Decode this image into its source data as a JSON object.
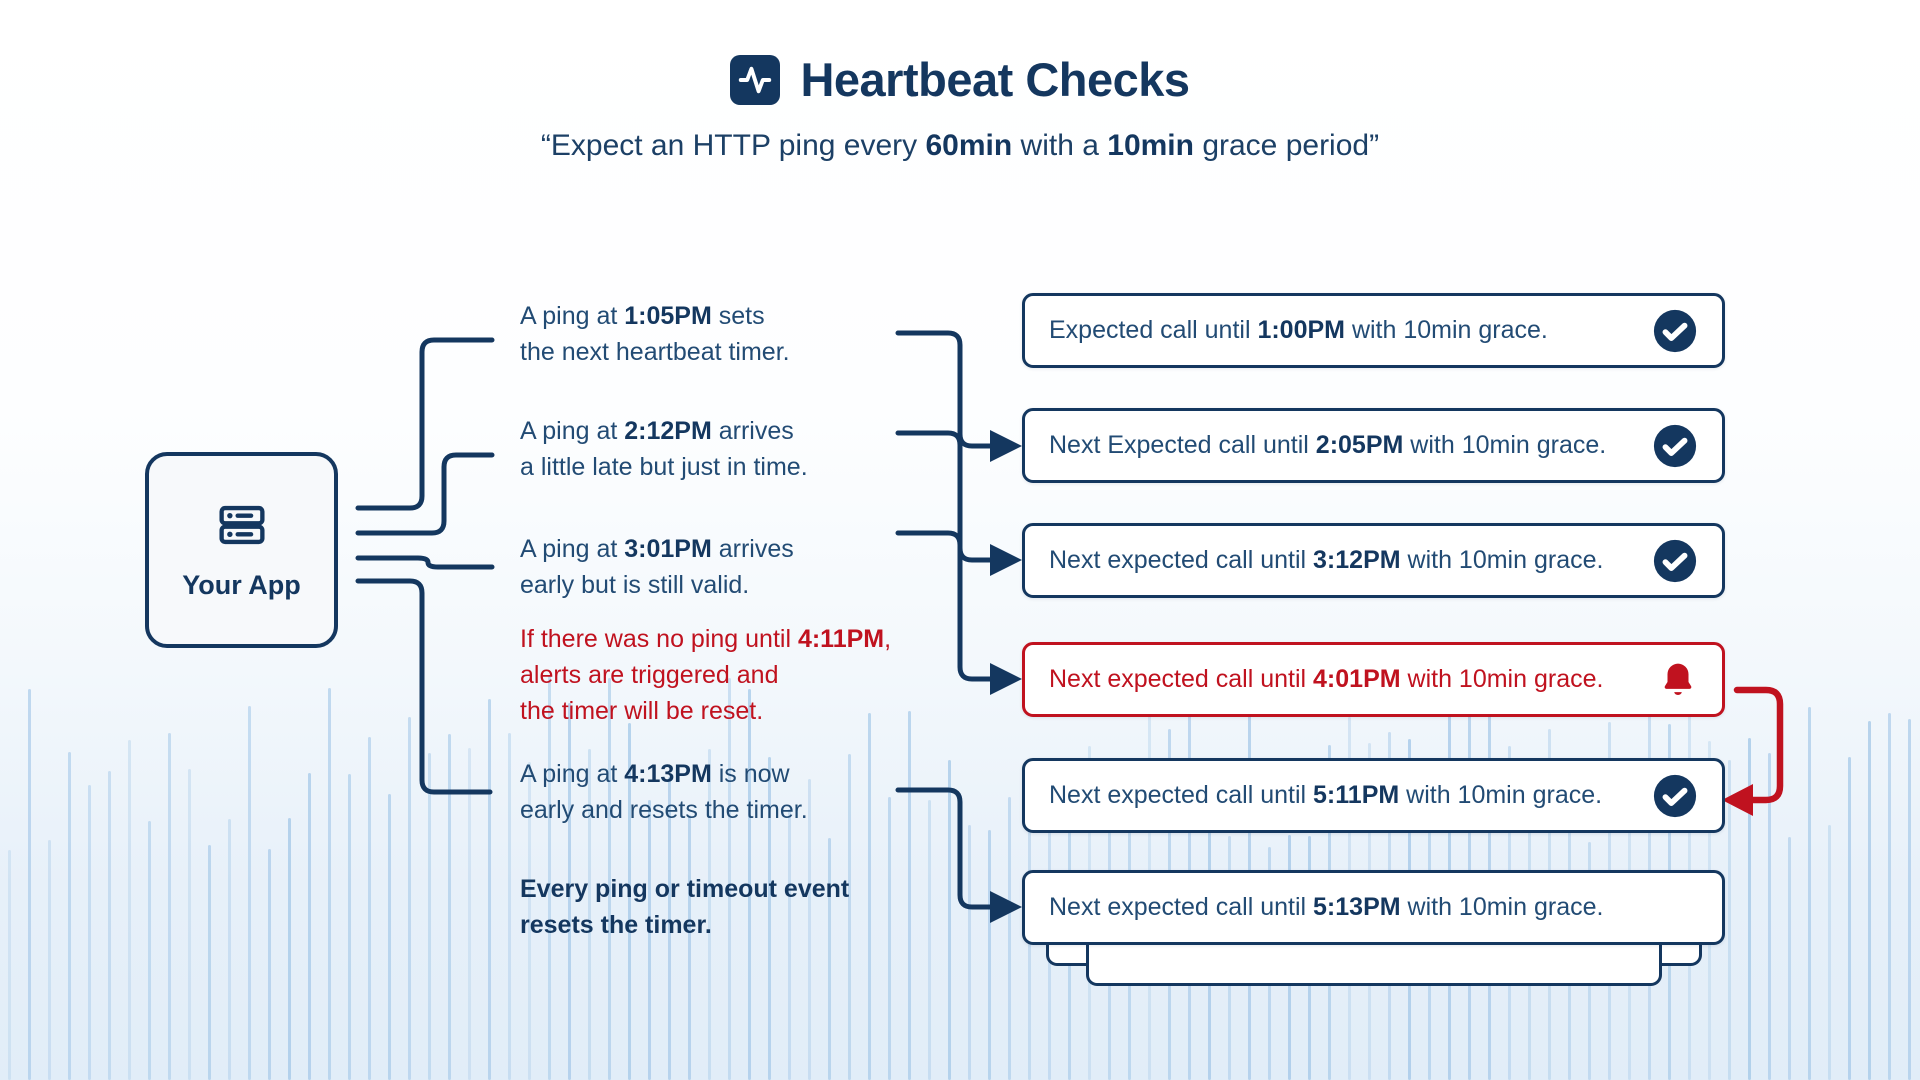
{
  "header": {
    "icon": "heartbeat-activity-icon",
    "title": "Heartbeat Checks",
    "subtitle": [
      {
        "t": "“Expect an HTTP ping every ",
        "b": false
      },
      {
        "t": "60min",
        "b": true
      },
      {
        "t": " with a ",
        "b": false
      },
      {
        "t": "10min",
        "b": true
      },
      {
        "t": " grace period”",
        "b": false
      }
    ]
  },
  "app_node": {
    "label": "Your App",
    "icon": "server-icon"
  },
  "annotations": [
    {
      "name": "note-ping-105",
      "tone": "navy",
      "lines": [
        [
          {
            "t": "A ping at ",
            "b": false
          },
          {
            "t": "1:05PM",
            "b": true
          },
          {
            "t": " sets",
            "b": false
          }
        ],
        [
          {
            "t": "the next heartbeat timer.",
            "b": false
          }
        ]
      ]
    },
    {
      "name": "note-ping-212",
      "tone": "navy",
      "lines": [
        [
          {
            "t": "A ping at ",
            "b": false
          },
          {
            "t": "2:12PM",
            "b": true
          },
          {
            "t": " arrives",
            "b": false
          }
        ],
        [
          {
            "t": "a little late but just in time.",
            "b": false
          }
        ]
      ]
    },
    {
      "name": "note-ping-301",
      "tone": "navy",
      "lines": [
        [
          {
            "t": "A ping at ",
            "b": false
          },
          {
            "t": "3:01PM",
            "b": true
          },
          {
            "t": " arrives",
            "b": false
          }
        ],
        [
          {
            "t": "early but is still valid.",
            "b": false
          }
        ]
      ]
    },
    {
      "name": "note-timeout-411",
      "tone": "red",
      "lines": [
        [
          {
            "t": "If there was no ping until ",
            "b": false
          },
          {
            "t": "4:11PM",
            "b": true
          },
          {
            "t": ",",
            "b": false
          }
        ],
        [
          {
            "t": "alerts are triggered and",
            "b": false
          }
        ],
        [
          {
            "t": "the timer will be reset.",
            "b": false
          }
        ]
      ]
    },
    {
      "name": "note-ping-413",
      "tone": "navy",
      "lines": [
        [
          {
            "t": "A ping at ",
            "b": false
          },
          {
            "t": "4:13PM",
            "b": true
          },
          {
            "t": " is now",
            "b": false
          }
        ],
        [
          {
            "t": "early and resets the timer.",
            "b": false
          }
        ]
      ]
    },
    {
      "name": "note-reset-rule",
      "tone": "allbold",
      "lines": [
        [
          {
            "t": "Every ping or timeout event",
            "b": true
          }
        ],
        [
          {
            "t": "resets the timer.",
            "b": true
          }
        ]
      ]
    }
  ],
  "cards": [
    {
      "name": "card-expected-100pm",
      "tone": "navy",
      "icon": "check-circle-icon",
      "segments": [
        {
          "t": "Expected call until ",
          "b": false
        },
        {
          "t": "1:00PM",
          "b": true
        },
        {
          "t": " with 10min grace.",
          "b": false
        }
      ]
    },
    {
      "name": "card-expected-205pm",
      "tone": "navy",
      "icon": "check-circle-icon",
      "segments": [
        {
          "t": "Next Expected call until ",
          "b": false
        },
        {
          "t": "2:05PM",
          "b": true
        },
        {
          "t": " with 10min grace.",
          "b": false
        }
      ]
    },
    {
      "name": "card-expected-312pm",
      "tone": "navy",
      "icon": "check-circle-icon",
      "segments": [
        {
          "t": "Next expected call until ",
          "b": false
        },
        {
          "t": "3:12PM",
          "b": true
        },
        {
          "t": " with 10min grace.",
          "b": false
        }
      ]
    },
    {
      "name": "card-expected-401pm",
      "tone": "red",
      "icon": "bell-icon",
      "segments": [
        {
          "t": "Next expected call until ",
          "b": false
        },
        {
          "t": "4:01PM",
          "b": true
        },
        {
          "t": " with 10min grace.",
          "b": false
        }
      ]
    },
    {
      "name": "card-expected-511pm",
      "tone": "navy",
      "icon": "check-circle-icon",
      "segments": [
        {
          "t": "Next expected call until ",
          "b": false
        },
        {
          "t": "5:11PM",
          "b": true
        },
        {
          "t": " with 10min grace.",
          "b": false
        }
      ]
    },
    {
      "name": "card-expected-513pm",
      "tone": "navy",
      "icon": "none",
      "segments": [
        {
          "t": "Next expected call until ",
          "b": false
        },
        {
          "t": "5:13PM",
          "b": true
        },
        {
          "t": " with 10min grace.",
          "b": false
        }
      ]
    }
  ],
  "colors": {
    "navy": "#14375F",
    "navy_text": "#224B74",
    "red": "#C0121F",
    "card_bg": "#FFFFFF",
    "wave": "#A9CBE9"
  }
}
